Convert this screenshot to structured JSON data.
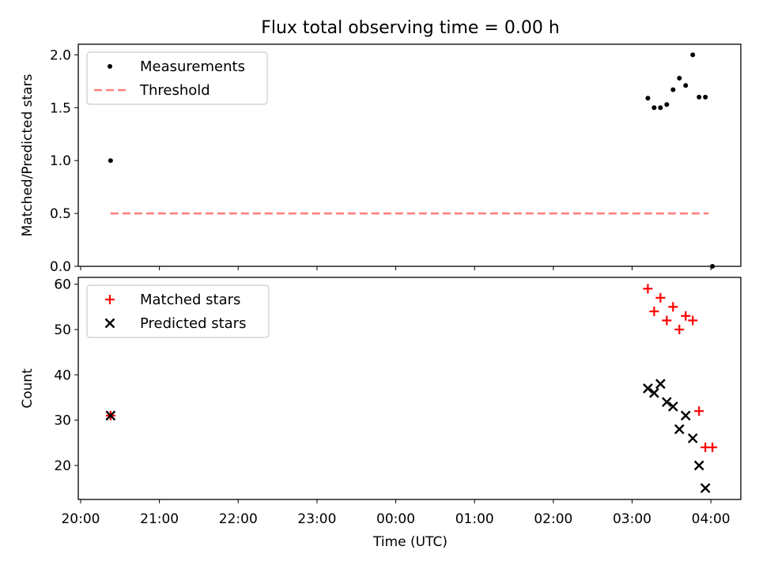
{
  "chart_data": {
    "title": "Flux total observing time = 0.00 h",
    "type": "scatter",
    "x_tick_labels": [
      "20:00",
      "21:00",
      "22:00",
      "23:00",
      "00:00",
      "01:00",
      "02:00",
      "03:00",
      "04:00"
    ],
    "xlabel": "Time (UTC)",
    "xlim_hours": [
      19.97,
      28.38
    ],
    "panels": [
      {
        "ylabel": "Matched/Predicted stars",
        "ylim": [
          0.0,
          2.1
        ],
        "y_ticks": [
          0.0,
          0.5,
          1.0,
          1.5,
          2.0
        ],
        "y_tick_labels": [
          "0.0",
          "0.5",
          "1.0",
          "1.5",
          "2.0"
        ],
        "legend_position": "top-left",
        "series": [
          {
            "name": "Measurements",
            "marker": "dot",
            "color": "#000000",
            "x": [
              20.38,
              27.2,
              27.28,
              27.36,
              27.44,
              27.52,
              27.6,
              27.68,
              27.77,
              27.85,
              27.93,
              28.02
            ],
            "y": [
              1.0,
              1.59,
              1.5,
              1.5,
              1.53,
              1.67,
              1.78,
              1.71,
              2.0,
              1.6,
              1.6,
              0.0
            ]
          },
          {
            "name": "Threshold",
            "marker": "dashed-line",
            "color": "#ff7f7f",
            "x": [
              20.38,
              27.97
            ],
            "y": [
              0.5,
              0.5
            ]
          }
        ]
      },
      {
        "ylabel": "Count",
        "ylim": [
          12.5,
          61.5
        ],
        "y_ticks": [
          20,
          30,
          40,
          50,
          60
        ],
        "y_tick_labels": [
          "20",
          "30",
          "40",
          "50",
          "60"
        ],
        "legend_position": "top-left",
        "series": [
          {
            "name": "Matched stars",
            "marker": "plus",
            "color": "#ff0000",
            "x": [
              20.38,
              27.2,
              27.28,
              27.36,
              27.44,
              27.52,
              27.6,
              27.68,
              27.77,
              27.85,
              27.93,
              28.02
            ],
            "y": [
              31,
              59,
              54,
              57,
              52,
              55,
              50,
              53,
              52,
              32,
              24,
              24
            ]
          },
          {
            "name": "Predicted stars",
            "marker": "x",
            "color": "#000000",
            "x": [
              20.38,
              27.2,
              27.28,
              27.36,
              27.44,
              27.52,
              27.6,
              27.68,
              27.77,
              27.85,
              27.93
            ],
            "y": [
              31,
              37,
              36,
              38,
              34,
              33,
              28,
              31,
              26,
              20,
              15
            ]
          }
        ]
      }
    ]
  }
}
